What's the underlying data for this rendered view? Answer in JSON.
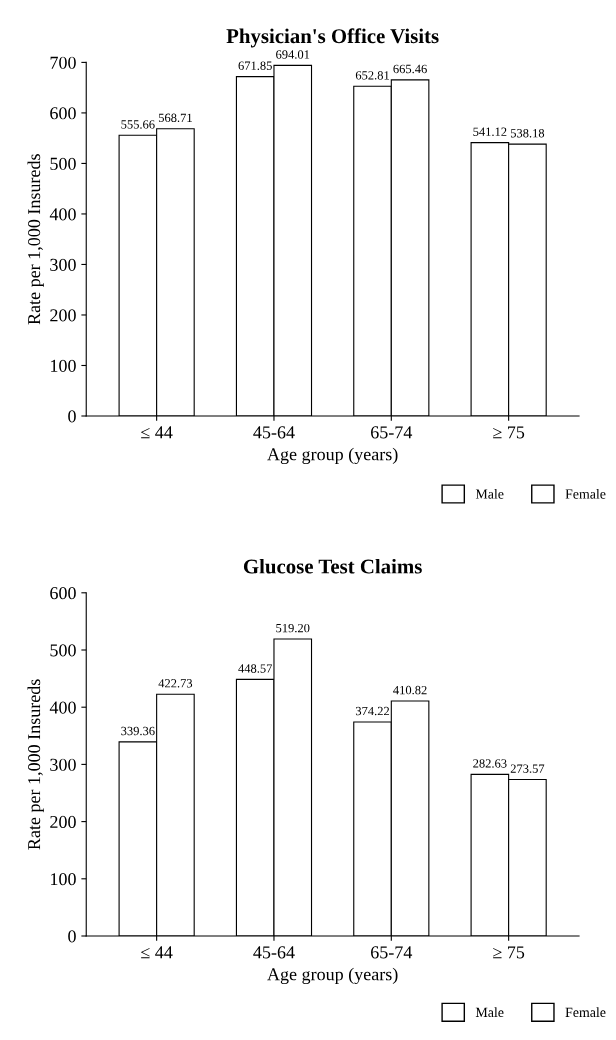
{
  "chart_data": [
    {
      "type": "bar",
      "title": "Physician's Office Visits",
      "xlabel": "Age group (years)",
      "ylabel": "Rate per 1,000 Insureds",
      "categories": [
        "≤ 44",
        "45-64",
        "65-74",
        "≥ 75"
      ],
      "series": [
        {
          "name": "Male",
          "color": "#ffffff",
          "values": [
            555.66,
            671.85,
            652.81,
            541.12
          ],
          "value_labels": [
            "555.66",
            "671.85",
            "652.81",
            "541.12"
          ]
        },
        {
          "name": "Female",
          "color": "#ffffff",
          "values": [
            568.71,
            694.01,
            665.46,
            538.18
          ],
          "value_labels": [
            "568.71",
            "694.01",
            "665.46",
            "538.18"
          ]
        }
      ],
      "ylim": [
        0,
        700
      ],
      "yticks": [
        0,
        100,
        200,
        300,
        400,
        500,
        600,
        700
      ],
      "legend": "bottom right",
      "grid": false
    },
    {
      "type": "bar",
      "title": "Glucose Test Claims",
      "xlabel": "Age group (years)",
      "ylabel": "Rate per 1,000 Insureds",
      "categories": [
        "≤ 44",
        "45-64",
        "65-74",
        "≥ 75"
      ],
      "series": [
        {
          "name": "Male",
          "color": "#ffffff",
          "values": [
            339.36,
            448.57,
            374.22,
            282.63
          ],
          "value_labels": [
            "339.36",
            "448.57",
            "374.22",
            "282.63"
          ]
        },
        {
          "name": "Female",
          "color": "#ffffff",
          "values": [
            422.73,
            519.2,
            410.82,
            273.57
          ],
          "value_labels": [
            "422.73",
            "519.20",
            "410.82",
            "273.57"
          ]
        }
      ],
      "ylim": [
        0,
        600
      ],
      "yticks": [
        0,
        100,
        200,
        300,
        400,
        500,
        600
      ],
      "legend": "bottom right",
      "grid": false
    }
  ]
}
